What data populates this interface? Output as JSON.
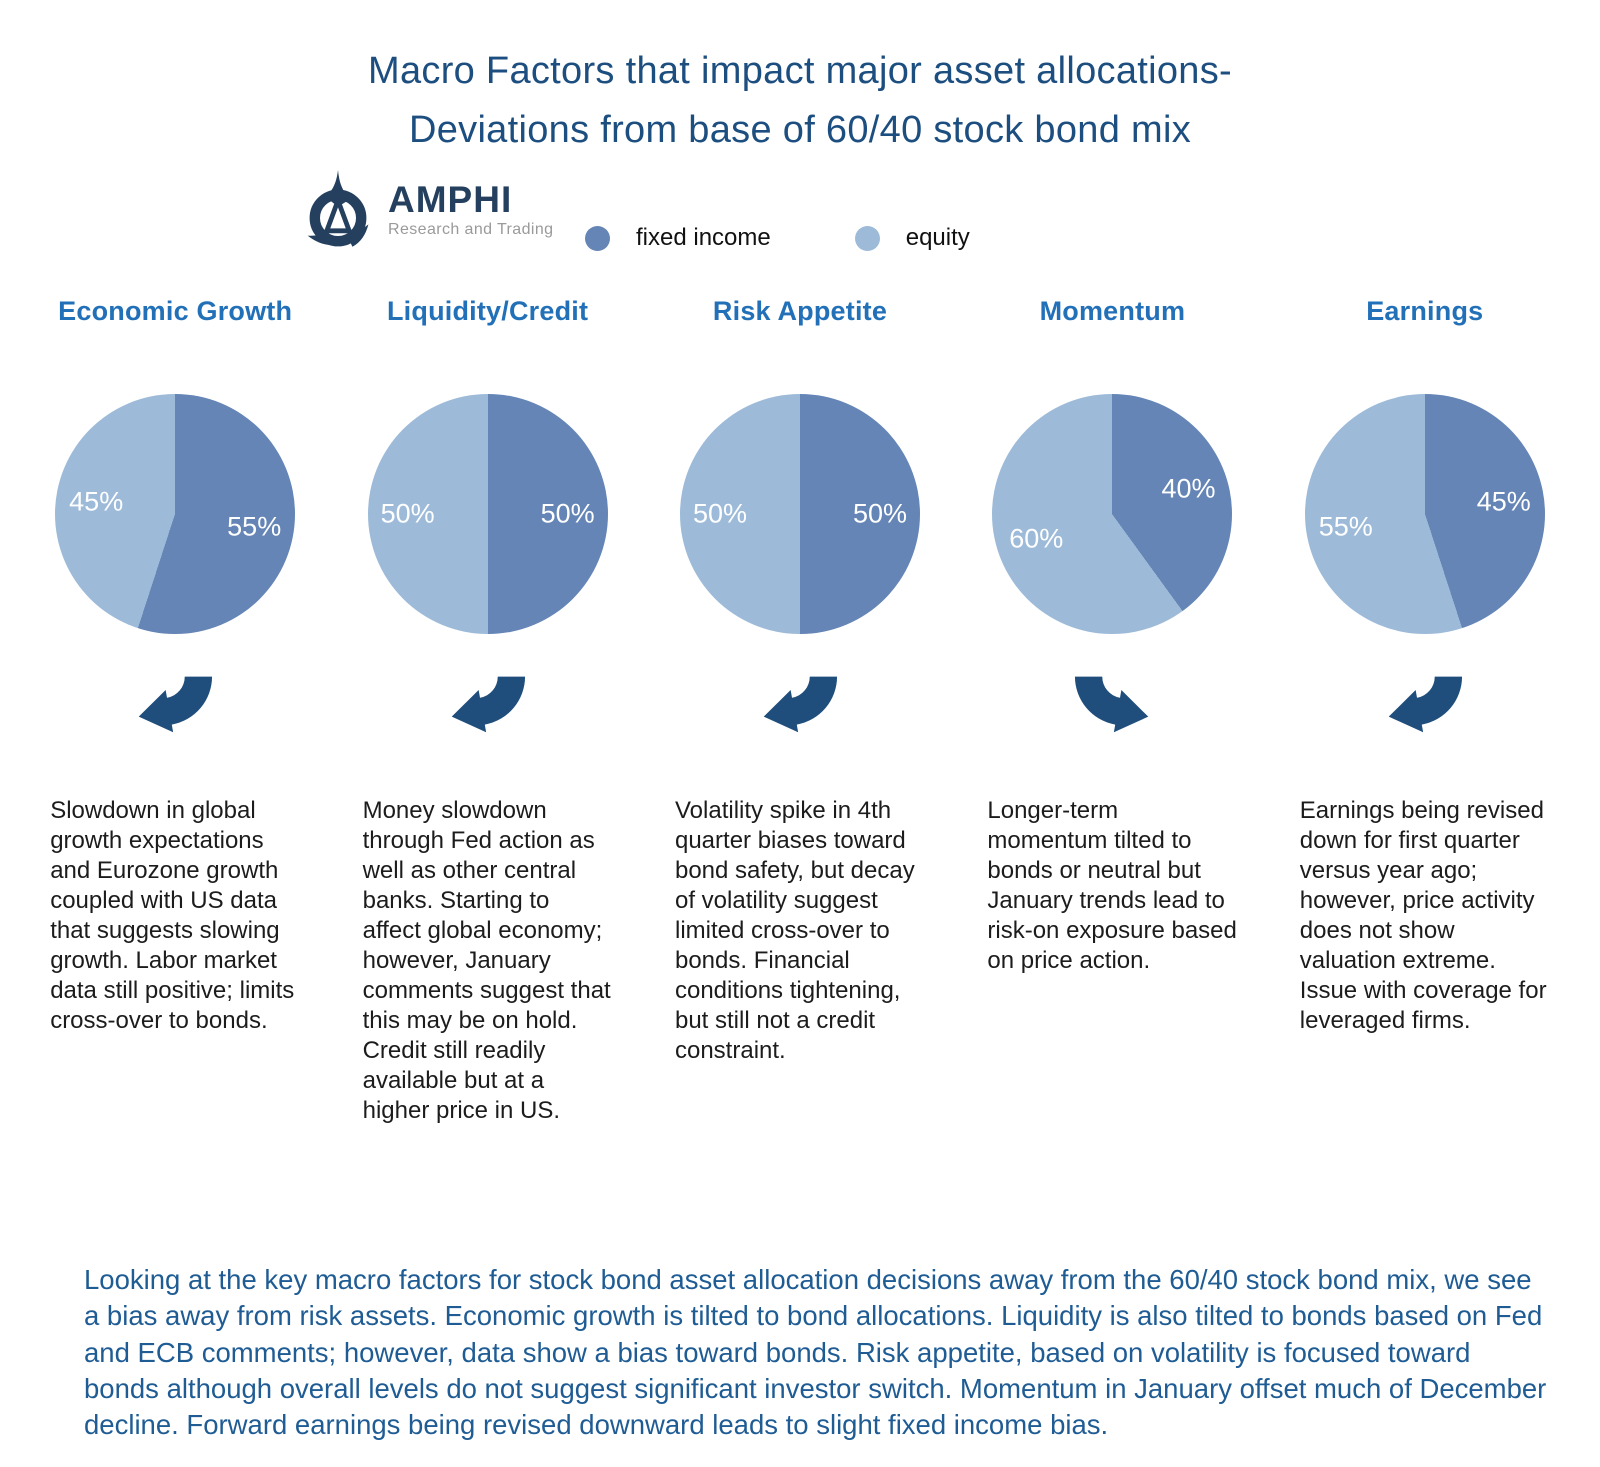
{
  "title": {
    "line1": "Macro Factors that impact major asset allocations-",
    "line2": "Deviations from base of 60/40 stock bond mix"
  },
  "logo": {
    "name": "AMPHI",
    "tagline": "Research and Trading"
  },
  "legend": {
    "items": [
      {
        "label": "fixed income",
        "color": "#6485b5"
      },
      {
        "label": "equity",
        "color": "#9dbbd9"
      }
    ]
  },
  "colors": {
    "fixed_income": "#6485b5",
    "equity": "#9dbbd9",
    "arrow": "#1f4e7c",
    "header": "#2170b8",
    "title": "#1d4e80",
    "footer": "#1f5c94"
  },
  "factors": [
    {
      "name": "Economic Growth",
      "fixed_income_pct": 55,
      "equity_pct": 45,
      "fixed_label": "55%",
      "equity_label": "45%",
      "arrow": "down-left",
      "description": "Slowdown in global growth expectations and Eurozone growth coupled with US data that suggests slowing growth. Labor market data still positive; limits cross-over to bonds."
    },
    {
      "name": "Liquidity/Credit",
      "fixed_income_pct": 50,
      "equity_pct": 50,
      "fixed_label": "50%",
      "equity_label": "50%",
      "arrow": "down-left",
      "description": "Money slowdown through Fed action as well as other central banks. Starting to affect global economy; however, January comments suggest that this may be on hold. Credit still readily available but at a higher price in US."
    },
    {
      "name": "Risk Appetite",
      "fixed_income_pct": 50,
      "equity_pct": 50,
      "fixed_label": "50%",
      "equity_label": "50%",
      "arrow": "down-left",
      "description": "Volatility spike in 4th quarter biases toward bond safety, but decay of volatility suggest limited cross-over to bonds. Financial conditions tightening, but still not a credit constraint."
    },
    {
      "name": "Momentum",
      "fixed_income_pct": 40,
      "equity_pct": 60,
      "fixed_label": "40%",
      "equity_label": "60%",
      "arrow": "down-right",
      "description": "Longer-term momentum tilted to bonds or neutral but January trends lead to risk-on exposure based on price action."
    },
    {
      "name": "Earnings",
      "fixed_income_pct": 45,
      "equity_pct": 55,
      "fixed_label": "45%",
      "equity_label": "55%",
      "arrow": "down-left",
      "description": "Earnings being revised down for first quarter versus year ago; however, price activity does not show valuation extreme. Issue with coverage for leveraged firms."
    }
  ],
  "footer_text": "Looking at the key macro factors for stock bond asset allocation decisions away from the 60/40 stock bond mix, we see a bias away from risk assets.  Economic growth is tilted to bond allocations. Liquidity is also tilted to bonds based on Fed and ECB comments; however, data show a bias toward bonds. Risk appetite, based on volatility is focused toward bonds although overall levels do not suggest significant investor switch. Momentum in January offset much of December decline. Forward earnings being revised downward leads to slight fixed income bias.",
  "chart_data": [
    {
      "type": "pie",
      "title": "Economic Growth",
      "labels": [
        "fixed income",
        "equity"
      ],
      "values": [
        55,
        45
      ],
      "colors": [
        "#6485b5",
        "#9dbbd9"
      ],
      "annotations": [
        "55%",
        "45%"
      ],
      "legend_position": "top"
    },
    {
      "type": "pie",
      "title": "Liquidity/Credit",
      "labels": [
        "fixed income",
        "equity"
      ],
      "values": [
        50,
        50
      ],
      "colors": [
        "#6485b5",
        "#9dbbd9"
      ],
      "annotations": [
        "50%",
        "50%"
      ],
      "legend_position": "top"
    },
    {
      "type": "pie",
      "title": "Risk Appetite",
      "labels": [
        "fixed income",
        "equity"
      ],
      "values": [
        50,
        50
      ],
      "colors": [
        "#6485b5",
        "#9dbbd9"
      ],
      "annotations": [
        "50%",
        "50%"
      ],
      "legend_position": "top"
    },
    {
      "type": "pie",
      "title": "Momentum",
      "labels": [
        "fixed income",
        "equity"
      ],
      "values": [
        40,
        60
      ],
      "colors": [
        "#6485b5",
        "#9dbbd9"
      ],
      "annotations": [
        "40%",
        "60%"
      ],
      "legend_position": "top"
    },
    {
      "type": "pie",
      "title": "Earnings",
      "labels": [
        "fixed income",
        "equity"
      ],
      "values": [
        45,
        55
      ],
      "colors": [
        "#6485b5",
        "#9dbbd9"
      ],
      "annotations": [
        "45%",
        "55%"
      ],
      "legend_position": "top"
    }
  ]
}
